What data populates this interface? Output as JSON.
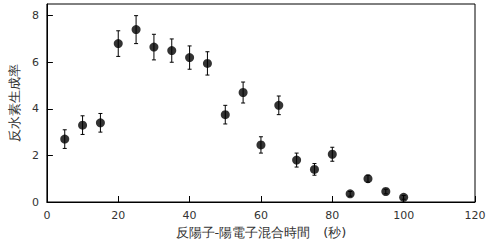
{
  "chart_data": {
    "type": "scatter",
    "xlabel": "反陽子-陽電子混合時間　(秒)",
    "ylabel": "反水素生成率",
    "x": [
      5,
      10,
      15,
      20,
      25,
      30,
      35,
      40,
      45,
      50,
      55,
      60,
      65,
      70,
      75,
      80,
      85,
      90,
      95,
      100
    ],
    "values": [
      2.7,
      3.3,
      3.4,
      6.8,
      7.4,
      6.65,
      6.5,
      6.2,
      5.95,
      3.75,
      4.7,
      2.45,
      4.15,
      1.8,
      1.4,
      2.05,
      0.35,
      1.0,
      0.45,
      0.2
    ],
    "errors": [
      0.4,
      0.4,
      0.4,
      0.55,
      0.6,
      0.55,
      0.5,
      0.5,
      0.5,
      0.4,
      0.45,
      0.35,
      0.4,
      0.3,
      0.25,
      0.3,
      0.1,
      0.15,
      0.1,
      0.08
    ],
    "color": "#000000",
    "marker": "circle",
    "xlim": [
      0,
      120
    ],
    "xticks": [
      0,
      20,
      40,
      60,
      80,
      100,
      120
    ],
    "ylim": [
      0,
      8.5
    ],
    "yticks": [
      0,
      2,
      4,
      6,
      8
    ],
    "grid": false
  }
}
